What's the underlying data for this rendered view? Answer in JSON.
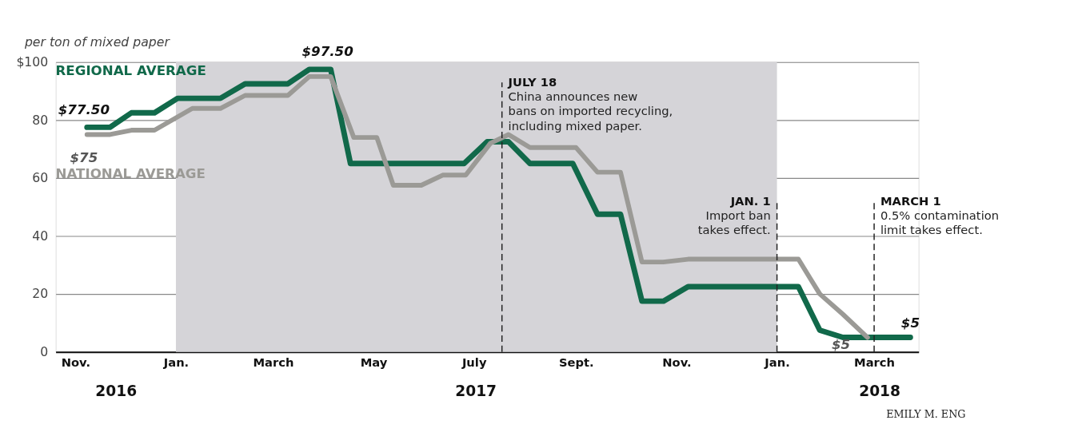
{
  "chart_data": {
    "type": "line",
    "ylabel": "per ton of mixed paper",
    "xlim": [
      "2016-10-20",
      "2018-03-28"
    ],
    "xticks": [
      {
        "value": "2016-11-01",
        "label": "Nov."
      },
      {
        "value": "2017-01-01",
        "label": "Jan."
      },
      {
        "value": "2017-03-01",
        "label": "March"
      },
      {
        "value": "2017-05-01",
        "label": "May"
      },
      {
        "value": "2017-07-01",
        "label": "July"
      },
      {
        "value": "2017-09-01",
        "label": "Sept."
      },
      {
        "value": "2017-11-01",
        "label": "Nov."
      },
      {
        "value": "2018-01-01",
        "label": "Jan."
      },
      {
        "value": "2018-03-01",
        "label": "March"
      }
    ],
    "ylim": [
      0,
      100
    ],
    "yticks": [
      0,
      20,
      40,
      60,
      80,
      {
        "value": 100,
        "label": "$100"
      }
    ],
    "grid": "y",
    "legend": false,
    "marker": "none",
    "line_style": "solid",
    "series": [
      {
        "name": "REGIONAL AVERAGE",
        "color": "#11694a",
        "x": [
          "2016-11-08",
          "2016-11-22",
          "2016-12-05",
          "2016-12-19",
          "2017-01-02",
          "2017-01-28",
          "2017-02-12",
          "2017-03-10",
          "2017-03-23",
          "2017-04-05",
          "2017-04-17",
          "2017-06-25",
          "2017-07-09",
          "2017-07-22",
          "2017-08-04",
          "2017-08-30",
          "2017-09-14",
          "2017-09-28",
          "2017-10-11",
          "2017-10-24",
          "2017-11-08",
          "2018-01-14",
          "2018-01-27",
          "2018-02-10",
          "2018-03-23"
        ],
        "values": [
          77.5,
          77.5,
          82.5,
          82.5,
          87.5,
          87.5,
          92.5,
          92.5,
          97.5,
          97.5,
          65,
          65,
          72.5,
          72.5,
          65,
          65,
          47.5,
          47.5,
          17.5,
          17.5,
          22.5,
          22.5,
          7.5,
          5,
          5
        ],
        "value_labels": [
          "$77.50",
          null,
          null,
          null,
          null,
          null,
          null,
          null,
          null,
          "$97.50",
          null,
          null,
          null,
          null,
          null,
          null,
          null,
          null,
          null,
          null,
          null,
          null,
          null,
          null,
          "$5"
        ]
      },
      {
        "name": "NATIONAL AVERAGE",
        "color": "#9b9a96",
        "x": [
          "2016-11-08",
          "2016-11-22",
          "2016-12-05",
          "2016-12-19",
          "2017-01-11",
          "2017-01-28",
          "2017-02-12",
          "2017-03-10",
          "2017-03-23",
          "2017-04-05",
          "2017-04-19",
          "2017-05-03",
          "2017-05-13",
          "2017-05-30",
          "2017-06-12",
          "2017-06-26",
          "2017-07-11",
          "2017-07-22",
          "2017-08-04",
          "2017-09-01",
          "2017-09-14",
          "2017-09-28",
          "2017-10-11",
          "2017-10-24",
          "2017-11-08",
          "2018-01-14",
          "2018-01-27",
          "2018-02-10",
          "2018-02-25"
        ],
        "values": [
          75,
          75,
          76.5,
          76.5,
          84,
          84,
          88.5,
          88.5,
          95,
          95,
          74,
          74,
          57.5,
          57.5,
          61,
          61,
          72,
          75,
          70.5,
          70.5,
          62,
          62,
          31,
          31,
          32,
          32,
          20,
          13,
          5
        ],
        "value_labels": [
          "$75",
          null,
          null,
          null,
          null,
          null,
          null,
          null,
          null,
          null,
          null,
          null,
          null,
          null,
          null,
          null,
          null,
          null,
          null,
          null,
          null,
          null,
          null,
          null,
          null,
          null,
          null,
          null,
          "$5"
        ]
      }
    ],
    "bands": [
      {
        "axis": "x",
        "from": "2017-01-01",
        "to": "2018-01-01",
        "color": "#d5d4d8"
      }
    ],
    "ref_lines": [
      {
        "axis": "x",
        "value": "2017-07-18",
        "label": "JULY 18\nChina announces new\nbans on imported recycling,\nincluding mixed paper.",
        "line_style": "dashed"
      },
      {
        "axis": "x",
        "value": "2018-01-01",
        "label": "JAN. 1\nImport ban\ntakes effect.",
        "line_style": "dashed"
      },
      {
        "axis": "x",
        "value": "2018-03-01",
        "label": "MARCH 1\n0.5% contamination\nlimit takes effect.",
        "line_style": "dashed"
      }
    ],
    "annotations": [
      "2016",
      "2017",
      "2018",
      "EMILY M. ENG"
    ]
  }
}
